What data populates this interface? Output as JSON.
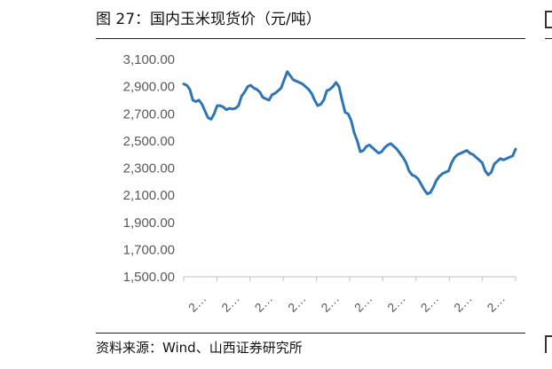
{
  "figure": {
    "title": "图 27：国内玉米现货价（元/吨）",
    "source": "资料来源：Wind、山西证券研究所"
  },
  "chart_data": {
    "type": "line",
    "title": "",
    "xlabel": "",
    "ylabel": "",
    "ylim": [
      1500,
      3100
    ],
    "y_ticks": [
      1500,
      1700,
      1900,
      2100,
      2300,
      2500,
      2700,
      2900,
      3100
    ],
    "y_tick_labels": [
      "1,500.00",
      "1,700.00",
      "1,900.00",
      "2,100.00",
      "2,300.00",
      "2,500.00",
      "2,700.00",
      "2,900.00",
      "3,100.00"
    ],
    "x_tick_labels": [
      "2…",
      "2…",
      "2…",
      "2…",
      "2…",
      "2…",
      "2…",
      "2…",
      "2…",
      "2…"
    ],
    "grid": false,
    "legend": "none",
    "series_color": "#2e75b6",
    "series": [
      {
        "values": [
          2920,
          2910,
          2880,
          2800,
          2790,
          2800,
          2770,
          2720,
          2670,
          2660,
          2700,
          2760,
          2760,
          2750,
          2730,
          2740,
          2735,
          2740,
          2760,
          2830,
          2860,
          2900,
          2910,
          2890,
          2880,
          2860,
          2820,
          2810,
          2800,
          2840,
          2850,
          2870,
          2890,
          2950,
          3010,
          2980,
          2950,
          2940,
          2930,
          2920,
          2900,
          2880,
          2850,
          2800,
          2760,
          2770,
          2800,
          2870,
          2880,
          2900,
          2930,
          2900,
          2800,
          2710,
          2700,
          2650,
          2560,
          2500,
          2420,
          2430,
          2460,
          2470,
          2450,
          2430,
          2410,
          2420,
          2450,
          2470,
          2480,
          2460,
          2440,
          2410,
          2380,
          2340,
          2280,
          2250,
          2240,
          2220,
          2180,
          2140,
          2110,
          2120,
          2160,
          2210,
          2240,
          2260,
          2270,
          2280,
          2340,
          2380,
          2400,
          2410,
          2420,
          2430,
          2410,
          2400,
          2380,
          2360,
          2340,
          2280,
          2250,
          2270,
          2330,
          2350,
          2370,
          2360,
          2370,
          2380,
          2390,
          2440
        ]
      }
    ]
  }
}
